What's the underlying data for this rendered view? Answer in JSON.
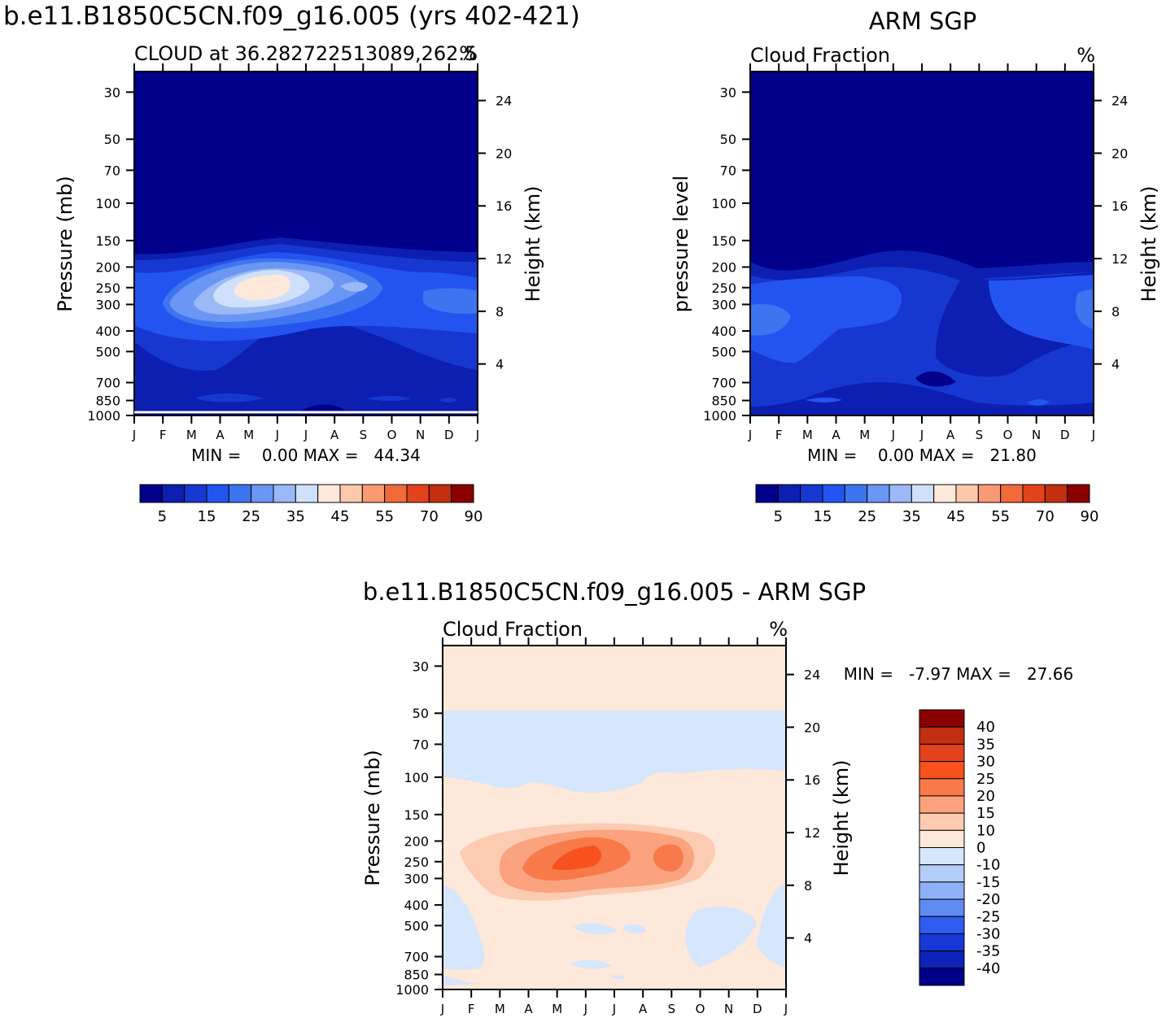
{
  "figure": {
    "top_left_title": "b.e11.B1850C5CN.f09_g16.005 (yrs 402-421)",
    "top_right_title": "ARM SGP",
    "bottom_title": "b.e11.B1850C5CN.f09_g16.005 - ARM SGP"
  },
  "months": [
    "J",
    "F",
    "M",
    "A",
    "M",
    "J",
    "J",
    "A",
    "S",
    "O",
    "N",
    "D",
    "J"
  ],
  "pressure_ticks": [
    "30",
    "50",
    "70",
    "100",
    "150",
    "200",
    "250",
    "300",
    "400",
    "500",
    "700",
    "850",
    "1000"
  ],
  "height_ticks": [
    "24",
    "20",
    "16",
    "12",
    "8",
    "4"
  ],
  "panels": {
    "model": {
      "subtitle_left": "CLOUD at 36.282722513089,262.5",
      "subtitle_right": "%",
      "ylabel_left": "Pressure (mb)",
      "ylabel_right": "Height (km)",
      "stats": "MIN =    0.00 MAX =   44.34"
    },
    "obs": {
      "subtitle_left": "Cloud Fraction",
      "subtitle_right": "%",
      "ylabel_left": "pressure level",
      "ylabel_right": "Height (km)",
      "stats": "MIN =    0.00 MAX =   21.80"
    },
    "diff": {
      "subtitle_left": "Cloud Fraction",
      "subtitle_right": "%",
      "ylabel_left": "Pressure (mb)",
      "ylabel_right": "Height (km)",
      "stats": "MIN =   -7.97 MAX =   27.66"
    }
  },
  "colorbars": {
    "main_labels": [
      "5",
      "15",
      "25",
      "35",
      "45",
      "55",
      "70",
      "90"
    ],
    "main_colors": [
      "#00008b",
      "#0c1fb0",
      "#1638d0",
      "#2454f0",
      "#3e74f0",
      "#6a96f4",
      "#9bb8f7",
      "#cfe0fb",
      "#fde8d9",
      "#fbc8ac",
      "#f89a73",
      "#f06a3c",
      "#e2421c",
      "#c22e10",
      "#8b0000"
    ],
    "diff_labels": [
      "40",
      "35",
      "30",
      "25",
      "20",
      "15",
      "10",
      "0",
      "-10",
      "-15",
      "-20",
      "-25",
      "-30",
      "-35",
      "-40"
    ],
    "diff_colors": [
      "#8b0000",
      "#c22e10",
      "#e2421c",
      "#f7521e",
      "#f87a4a",
      "#faa37e",
      "#fccbb2",
      "#fde8d9",
      "#d6e6fc",
      "#b3ccfa",
      "#8fb0f7",
      "#5f8cf2",
      "#2f5cf0",
      "#1838d6",
      "#0c22b8",
      "#00008b"
    ]
  },
  "chart_data": [
    {
      "type": "heatmap",
      "title": "b.e11.B1850C5CN.f09_g16.005 (yrs 402-421)",
      "subtitle": "CLOUD at 36.282722513089,262.5",
      "units": "%",
      "xlabel": "",
      "ylabel": "Pressure (mb)",
      "y2label": "Height (km)",
      "x": [
        "J",
        "F",
        "M",
        "A",
        "M",
        "J",
        "J",
        "A",
        "S",
        "O",
        "N",
        "D",
        "J"
      ],
      "y_levels_mb": [
        30,
        50,
        70,
        100,
        150,
        200,
        250,
        300,
        400,
        500,
        700,
        850,
        1000
      ],
      "levels": [
        5,
        10,
        15,
        20,
        25,
        30,
        35,
        40,
        45,
        50,
        55,
        70,
        90
      ],
      "min": 0.0,
      "max": 44.34,
      "features": [
        {
          "level": 45,
          "month_center": 4.3,
          "month_halfwidth": 1.0,
          "p_center": 255,
          "p_depth": 0.17
        },
        {
          "level": 35,
          "month_center": 4.8,
          "month_halfwidth": 2.4,
          "p_center": 270,
          "p_depth": 0.4
        },
        {
          "level": 25,
          "month_center": 4.5,
          "month_halfwidth": 3.4,
          "p_center": 290,
          "p_depth": 0.6
        },
        {
          "level": 15,
          "month_center": 5.5,
          "month_halfwidth": 6.5,
          "p_center": 310,
          "p_depth": 1.1
        }
      ]
    },
    {
      "type": "heatmap",
      "title": "ARM SGP",
      "subtitle": "Cloud Fraction",
      "units": "%",
      "ylabel": "pressure level",
      "y2label": "Height (km)",
      "x": [
        "J",
        "F",
        "M",
        "A",
        "M",
        "J",
        "J",
        "A",
        "S",
        "O",
        "N",
        "D",
        "J"
      ],
      "y_levels_mb": [
        30,
        50,
        70,
        100,
        150,
        200,
        250,
        300,
        400,
        500,
        700,
        850,
        1000
      ],
      "levels": [
        5,
        10,
        15,
        20,
        25,
        30,
        35,
        40,
        45,
        50,
        55,
        70,
        90
      ],
      "min": 0.0,
      "max": 21.8,
      "features": [
        {
          "level": 20,
          "month_center": 0.5,
          "month_halfwidth": 1.0,
          "p_center": 360,
          "p_depth": 0.35
        },
        {
          "level": 15,
          "month_center": 3.0,
          "month_halfwidth": 3.0,
          "p_center": 330,
          "p_depth": 0.9
        },
        {
          "level": 15,
          "month_center": 10.5,
          "month_halfwidth": 1.6,
          "p_center": 330,
          "p_depth": 0.8
        },
        {
          "level": 10,
          "month_center": 6.0,
          "month_halfwidth": 6.5,
          "p_center": 400,
          "p_depth": 2.2
        }
      ]
    },
    {
      "type": "heatmap",
      "title": "b.e11.B1850C5CN.f09_g16.005 - ARM SGP",
      "subtitle": "Cloud Fraction",
      "units": "%",
      "ylabel": "Pressure (mb)",
      "y2label": "Height (km)",
      "x": [
        "J",
        "F",
        "M",
        "A",
        "M",
        "J",
        "J",
        "A",
        "S",
        "O",
        "N",
        "D",
        "J"
      ],
      "y_levels_mb": [
        30,
        50,
        70,
        100,
        150,
        200,
        250,
        300,
        400,
        500,
        700,
        850,
        1000
      ],
      "levels": [
        -40,
        -35,
        -30,
        -25,
        -20,
        -15,
        -10,
        0,
        10,
        15,
        20,
        25,
        30,
        35,
        40
      ],
      "min": -7.97,
      "max": 27.66,
      "features": [
        {
          "level": 25,
          "month_center": 5.1,
          "month_halfwidth": 0.6,
          "p_center": 255,
          "p_depth": 0.12
        },
        {
          "level": 20,
          "month_center": 4.9,
          "month_halfwidth": 1.2,
          "p_center": 260,
          "p_depth": 0.2
        },
        {
          "level": 20,
          "month_center": 7.8,
          "month_halfwidth": 0.4,
          "p_center": 250,
          "p_depth": 0.15
        },
        {
          "level": 15,
          "month_center": 5.0,
          "month_halfwidth": 2.0,
          "p_center": 265,
          "p_depth": 0.32
        },
        {
          "level": 15,
          "month_center": 7.8,
          "month_halfwidth": 0.7,
          "p_center": 250,
          "p_depth": 0.25
        },
        {
          "level": 10,
          "month_center": 5.5,
          "month_halfwidth": 3.3,
          "p_center": 270,
          "p_depth": 0.5
        }
      ]
    }
  ]
}
